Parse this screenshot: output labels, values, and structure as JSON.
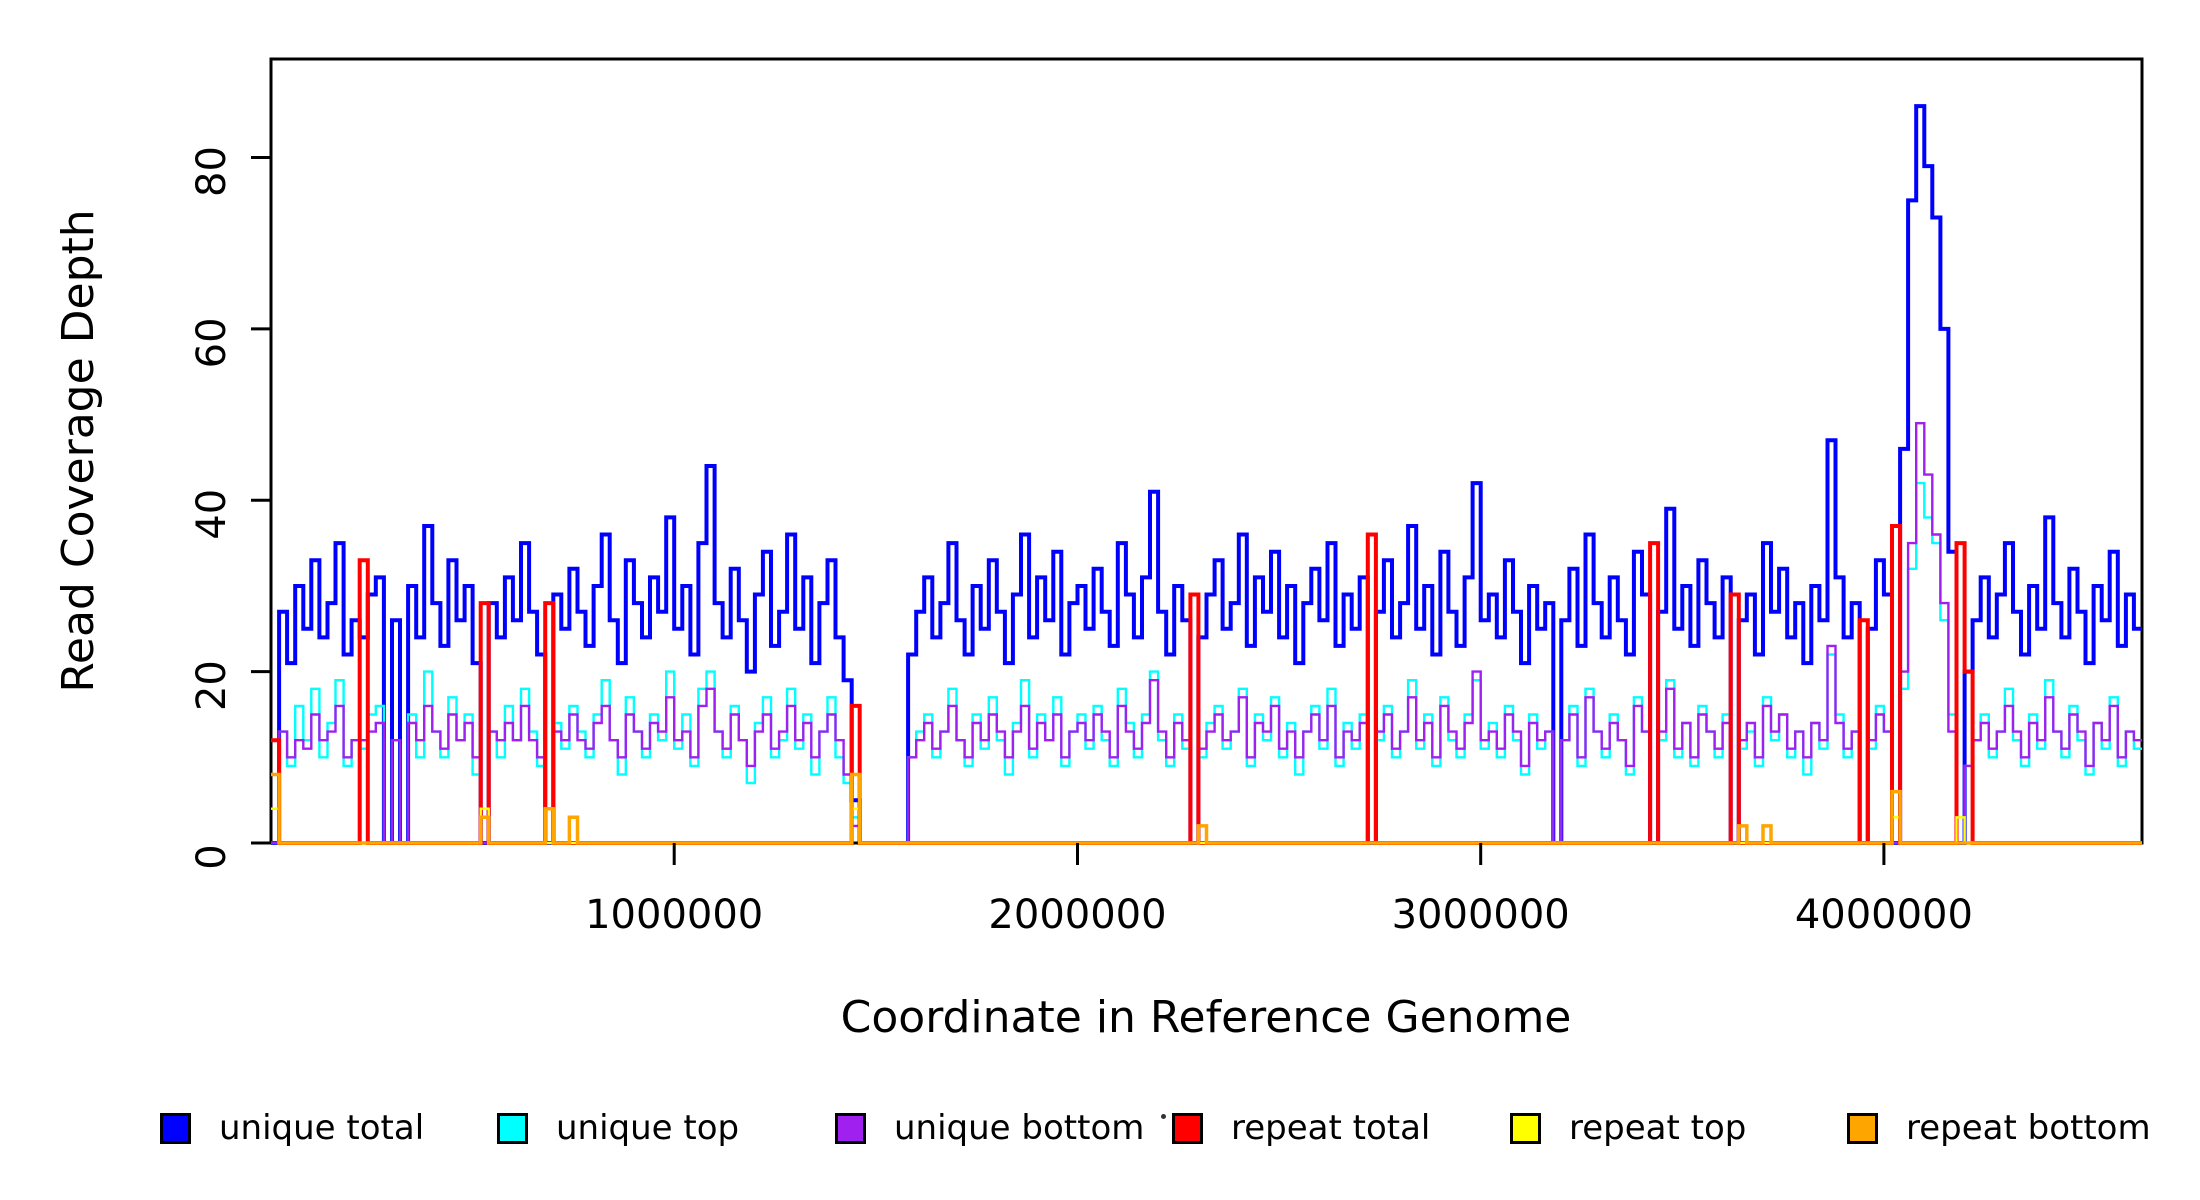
{
  "figure": {
    "background": "#ffffff"
  },
  "axes": {
    "x": {
      "label": "Coordinate in Reference Genome",
      "ticks": [
        1000000,
        2000000,
        3000000,
        4000000
      ],
      "tick_labels": [
        "1000000",
        "2000000",
        "3000000",
        "4000000"
      ],
      "range": [
        0,
        4640000
      ]
    },
    "y": {
      "label": "Read Coverage Depth",
      "ticks": [
        0,
        20,
        40,
        60,
        80
      ],
      "tick_labels": [
        "0",
        "20",
        "40",
        "60",
        "80"
      ],
      "range": [
        0,
        91.5
      ]
    }
  },
  "legend": {
    "position": "bottom",
    "items": [
      {
        "label": "unique total",
        "color": "#0000FF"
      },
      {
        "label": "unique top",
        "color": "#00FFFF"
      },
      {
        "label": "unique bottom",
        "color": "#A020F0"
      },
      {
        "label": "repeat total",
        "color": "#FF0000"
      },
      {
        "label": "repeat top",
        "color": "#FFFF00"
      },
      {
        "label": "repeat bottom",
        "color": "#FFA500"
      }
    ]
  },
  "chart_data": {
    "type": "line",
    "subtype": "step-coverage",
    "title": "",
    "xlabel": "Coordinate in Reference Genome",
    "ylabel": "Read Coverage Depth",
    "grid": false,
    "legend_position": "bottom",
    "xlim": [
      0,
      4640000
    ],
    "ylim": [
      0,
      91.5
    ],
    "bin_size": 20000,
    "x_start": 0,
    "n_bins": 232,
    "series": [
      {
        "name": "unique total",
        "color": "#0000FF",
        "line_width": 4,
        "values": [
          0,
          27,
          21,
          30,
          25,
          33,
          24,
          28,
          35,
          22,
          26,
          24,
          29,
          31,
          0,
          26,
          0,
          30,
          24,
          37,
          28,
          23,
          33,
          26,
          30,
          21,
          0,
          28,
          24,
          31,
          26,
          35,
          27,
          22,
          0,
          29,
          25,
          32,
          27,
          23,
          30,
          36,
          26,
          21,
          33,
          28,
          24,
          31,
          27,
          38,
          25,
          30,
          22,
          35,
          44,
          28,
          24,
          32,
          26,
          20,
          29,
          34,
          23,
          27,
          36,
          25,
          31,
          21,
          28,
          33,
          24,
          19,
          5,
          0,
          0,
          0,
          0,
          0,
          0,
          22,
          27,
          31,
          24,
          28,
          35,
          26,
          22,
          30,
          25,
          33,
          27,
          21,
          29,
          36,
          24,
          31,
          26,
          34,
          22,
          28,
          30,
          25,
          32,
          27,
          23,
          35,
          29,
          24,
          31,
          41,
          27,
          22,
          30,
          26,
          0,
          24,
          29,
          33,
          25,
          28,
          36,
          23,
          31,
          27,
          34,
          24,
          30,
          21,
          28,
          32,
          26,
          35,
          23,
          29,
          25,
          31,
          0,
          27,
          33,
          24,
          28,
          37,
          25,
          30,
          22,
          34,
          27,
          23,
          31,
          42,
          26,
          29,
          24,
          33,
          27,
          21,
          30,
          25,
          28,
          0,
          26,
          32,
          23,
          36,
          28,
          24,
          31,
          26,
          22,
          34,
          29,
          0,
          27,
          39,
          25,
          30,
          23,
          33,
          28,
          24,
          31,
          0,
          26,
          29,
          22,
          35,
          27,
          32,
          24,
          28,
          21,
          30,
          26,
          47,
          31,
          24,
          28,
          0,
          25,
          33,
          29,
          0,
          46,
          75,
          86,
          79,
          73,
          60,
          34,
          0,
          20,
          26,
          31,
          24,
          29,
          35,
          27,
          22,
          30,
          25,
          38,
          28,
          24,
          32,
          27,
          21,
          30,
          26,
          34,
          23,
          29,
          25
        ]
      },
      {
        "name": "unique top",
        "color": "#00FFFF",
        "line_width": 2.4,
        "values": [
          0,
          13,
          9,
          16,
          12,
          18,
          10,
          14,
          19,
          9,
          12,
          11,
          15,
          16,
          0,
          12,
          0,
          15,
          10,
          20,
          13,
          10,
          17,
          12,
          15,
          8,
          0,
          13,
          10,
          16,
          12,
          18,
          13,
          9,
          0,
          14,
          11,
          16,
          13,
          10,
          15,
          19,
          12,
          8,
          17,
          13,
          10,
          15,
          12,
          20,
          11,
          15,
          9,
          18,
          20,
          13,
          10,
          16,
          12,
          7,
          14,
          17,
          10,
          12,
          18,
          11,
          15,
          8,
          13,
          17,
          10,
          7,
          3,
          0,
          0,
          0,
          0,
          0,
          0,
          10,
          13,
          15,
          10,
          13,
          18,
          12,
          9,
          15,
          11,
          17,
          12,
          8,
          14,
          19,
          10,
          15,
          12,
          17,
          9,
          13,
          15,
          11,
          16,
          12,
          9,
          18,
          14,
          10,
          15,
          20,
          12,
          9,
          15,
          11,
          0,
          10,
          14,
          16,
          11,
          13,
          18,
          9,
          15,
          12,
          17,
          10,
          14,
          8,
          13,
          16,
          11,
          18,
          9,
          14,
          11,
          15,
          0,
          12,
          16,
          10,
          13,
          19,
          11,
          15,
          9,
          17,
          12,
          10,
          15,
          19,
          11,
          14,
          10,
          16,
          12,
          8,
          15,
          11,
          13,
          0,
          12,
          16,
          9,
          18,
          13,
          10,
          15,
          12,
          8,
          17,
          13,
          0,
          12,
          19,
          10,
          14,
          9,
          16,
          13,
          10,
          15,
          0,
          11,
          13,
          9,
          17,
          12,
          15,
          10,
          13,
          8,
          14,
          11,
          22,
          15,
          10,
          13,
          0,
          11,
          16,
          13,
          0,
          18,
          32,
          42,
          38,
          35,
          26,
          15,
          0,
          9,
          12,
          15,
          10,
          13,
          18,
          12,
          9,
          15,
          11,
          19,
          13,
          10,
          16,
          12,
          8,
          14,
          11,
          17,
          9,
          13,
          11
        ]
      },
      {
        "name": "unique bottom",
        "color": "#A020F0",
        "line_width": 2.4,
        "values": [
          0,
          13,
          10,
          12,
          11,
          15,
          12,
          13,
          16,
          10,
          12,
          12,
          13,
          14,
          0,
          12,
          0,
          14,
          12,
          16,
          13,
          11,
          15,
          12,
          14,
          10,
          0,
          13,
          12,
          14,
          12,
          16,
          12,
          10,
          0,
          13,
          12,
          15,
          12,
          11,
          14,
          16,
          12,
          10,
          15,
          13,
          11,
          14,
          13,
          17,
          12,
          13,
          10,
          16,
          18,
          13,
          11,
          15,
          12,
          9,
          13,
          15,
          11,
          13,
          16,
          12,
          14,
          10,
          13,
          15,
          12,
          8,
          2,
          0,
          0,
          0,
          0,
          0,
          0,
          10,
          12,
          14,
          11,
          13,
          16,
          12,
          10,
          14,
          12,
          15,
          13,
          10,
          13,
          16,
          11,
          14,
          12,
          15,
          10,
          13,
          14,
          12,
          15,
          13,
          10,
          16,
          13,
          11,
          14,
          19,
          13,
          10,
          14,
          12,
          0,
          11,
          13,
          15,
          12,
          13,
          17,
          10,
          14,
          13,
          16,
          11,
          13,
          10,
          13,
          15,
          12,
          16,
          10,
          13,
          12,
          14,
          0,
          13,
          15,
          11,
          13,
          17,
          12,
          14,
          10,
          16,
          13,
          11,
          14,
          20,
          12,
          13,
          11,
          15,
          13,
          9,
          14,
          12,
          13,
          0,
          12,
          15,
          10,
          17,
          13,
          11,
          14,
          12,
          9,
          16,
          13,
          0,
          13,
          18,
          11,
          14,
          10,
          15,
          13,
          11,
          14,
          0,
          12,
          14,
          10,
          16,
          13,
          15,
          11,
          13,
          10,
          14,
          12,
          23,
          14,
          11,
          13,
          0,
          12,
          15,
          13,
          0,
          20,
          35,
          49,
          43,
          36,
          28,
          13,
          0,
          9,
          12,
          14,
          11,
          13,
          16,
          13,
          10,
          14,
          12,
          17,
          13,
          11,
          15,
          13,
          9,
          14,
          12,
          16,
          10,
          13,
          12
        ]
      },
      {
        "name": "repeat total",
        "color": "#FF0000",
        "line_width": 4,
        "default": 0,
        "values_sparse": {
          "0": 12,
          "11": 33,
          "26": 28,
          "34": 28,
          "72": 16,
          "114": 29,
          "136": 36,
          "171": 35,
          "181": 29,
          "197": 26,
          "201": 37,
          "209": 35,
          "210": 20
        }
      },
      {
        "name": "repeat top",
        "color": "#FFFF00",
        "line_width": 2.4,
        "default": 0,
        "values_sparse": {
          "0": 4,
          "26": 4,
          "72": 4,
          "201": 3,
          "209": 3
        }
      },
      {
        "name": "repeat bottom",
        "color": "#FFA500",
        "line_width": 3.5,
        "default": 0,
        "values_sparse": {
          "0": 8,
          "26": 3,
          "34": 4,
          "37": 3,
          "72": 8,
          "115": 2,
          "182": 2,
          "185": 2,
          "201": 6
        }
      }
    ]
  },
  "annotations": {
    "stray_mark": "small dot above legend between 'unique bottom' and 'repeat total'"
  }
}
